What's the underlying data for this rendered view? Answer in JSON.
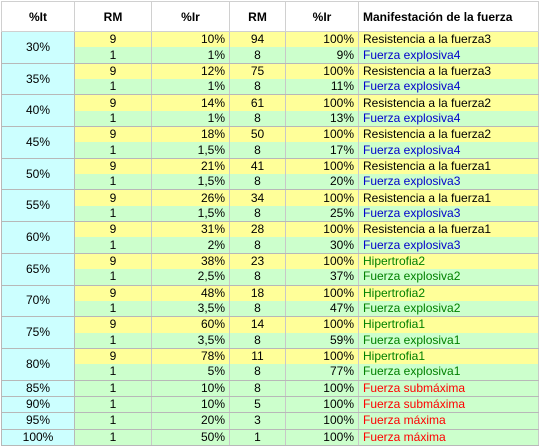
{
  "headers": [
    "%It",
    "RM",
    "%Ir",
    "RM",
    "%Ir",
    "Manifestación de la fuerza"
  ],
  "colors": {
    "black": "#000000",
    "blue": "#0000cc",
    "green": "#008000",
    "red": "#ff0000"
  },
  "groups": [
    {
      "it": "30%",
      "rows": [
        {
          "rm1": "9",
          "ir1": "10%",
          "rm2": "94",
          "ir2": "100%",
          "manif": "Resistencia a la fuerza3",
          "color": "black",
          "bg": "yellow"
        },
        {
          "rm1": "1",
          "ir1": "1%",
          "rm2": "8",
          "ir2": "9%",
          "manif": "Fuerza explosiva4",
          "color": "blue",
          "bg": "green"
        }
      ]
    },
    {
      "it": "35%",
      "rows": [
        {
          "rm1": "9",
          "ir1": "12%",
          "rm2": "75",
          "ir2": "100%",
          "manif": "Resistencia a la fuerza3",
          "color": "black",
          "bg": "yellow"
        },
        {
          "rm1": "1",
          "ir1": "1%",
          "rm2": "8",
          "ir2": "11%",
          "manif": "Fuerza explosiva4",
          "color": "blue",
          "bg": "green"
        }
      ]
    },
    {
      "it": "40%",
      "rows": [
        {
          "rm1": "9",
          "ir1": "14%",
          "rm2": "61",
          "ir2": "100%",
          "manif": "Resistencia a la fuerza2",
          "color": "black",
          "bg": "yellow"
        },
        {
          "rm1": "1",
          "ir1": "1%",
          "rm2": "8",
          "ir2": "13%",
          "manif": "Fuerza explosiva4",
          "color": "blue",
          "bg": "green"
        }
      ]
    },
    {
      "it": "45%",
      "rows": [
        {
          "rm1": "9",
          "ir1": "18%",
          "rm2": "50",
          "ir2": "100%",
          "manif": "Resistencia a la fuerza2",
          "color": "black",
          "bg": "yellow"
        },
        {
          "rm1": "1",
          "ir1": "1,5%",
          "rm2": "8",
          "ir2": "17%",
          "manif": "Fuerza explosiva4",
          "color": "blue",
          "bg": "green"
        }
      ]
    },
    {
      "it": "50%",
      "rows": [
        {
          "rm1": "9",
          "ir1": "21%",
          "rm2": "41",
          "ir2": "100%",
          "manif": "Resistencia a la fuerza1",
          "color": "black",
          "bg": "yellow"
        },
        {
          "rm1": "1",
          "ir1": "1,5%",
          "rm2": "8",
          "ir2": "20%",
          "manif": "Fuerza explosiva3",
          "color": "blue",
          "bg": "green"
        }
      ]
    },
    {
      "it": "55%",
      "rows": [
        {
          "rm1": "9",
          "ir1": "26%",
          "rm2": "34",
          "ir2": "100%",
          "manif": "Resistencia a la fuerza1",
          "color": "black",
          "bg": "yellow"
        },
        {
          "rm1": "1",
          "ir1": "1,5%",
          "rm2": "8",
          "ir2": "25%",
          "manif": "Fuerza explosiva3",
          "color": "blue",
          "bg": "green"
        }
      ]
    },
    {
      "it": "60%",
      "rows": [
        {
          "rm1": "9",
          "ir1": "31%",
          "rm2": "28",
          "ir2": "100%",
          "manif": "Resistencia a la fuerza1",
          "color": "black",
          "bg": "yellow"
        },
        {
          "rm1": "1",
          "ir1": "2%",
          "rm2": "8",
          "ir2": "30%",
          "manif": "Fuerza explosiva3",
          "color": "blue",
          "bg": "green"
        }
      ]
    },
    {
      "it": "65%",
      "rows": [
        {
          "rm1": "9",
          "ir1": "38%",
          "rm2": "23",
          "ir2": "100%",
          "manif": "Hipertrofia2",
          "color": "green",
          "bg": "yellow"
        },
        {
          "rm1": "1",
          "ir1": "2,5%",
          "rm2": "8",
          "ir2": "37%",
          "manif": "Fuerza explosiva2",
          "color": "green",
          "bg": "green"
        }
      ]
    },
    {
      "it": "70%",
      "rows": [
        {
          "rm1": "9",
          "ir1": "48%",
          "rm2": "18",
          "ir2": "100%",
          "manif": "Hipertrofia2",
          "color": "green",
          "bg": "yellow"
        },
        {
          "rm1": "1",
          "ir1": "3,5%",
          "rm2": "8",
          "ir2": "47%",
          "manif": "Fuerza explosiva2",
          "color": "green",
          "bg": "green"
        }
      ]
    },
    {
      "it": "75%",
      "rows": [
        {
          "rm1": "9",
          "ir1": "60%",
          "rm2": "14",
          "ir2": "100%",
          "manif": "Hipertrofia1",
          "color": "green",
          "bg": "yellow"
        },
        {
          "rm1": "1",
          "ir1": "3,5%",
          "rm2": "8",
          "ir2": "59%",
          "manif": "Fuerza explosiva1",
          "color": "green",
          "bg": "green"
        }
      ]
    },
    {
      "it": "80%",
      "rows": [
        {
          "rm1": "9",
          "ir1": "78%",
          "rm2": "11",
          "ir2": "100%",
          "manif": "Hipertrofia1",
          "color": "green",
          "bg": "yellow"
        },
        {
          "rm1": "1",
          "ir1": "5%",
          "rm2": "8",
          "ir2": "77%",
          "manif": "Fuerza explosiva1",
          "color": "green",
          "bg": "green"
        }
      ]
    },
    {
      "it": "85%",
      "rows": [
        {
          "rm1": "1",
          "ir1": "10%",
          "rm2": "8",
          "ir2": "100%",
          "manif": "Fuerza submáxima",
          "color": "red",
          "bg": "green"
        }
      ]
    },
    {
      "it": "90%",
      "rows": [
        {
          "rm1": "1",
          "ir1": "10%",
          "rm2": "5",
          "ir2": "100%",
          "manif": "Fuerza submáxima",
          "color": "red",
          "bg": "green"
        }
      ]
    },
    {
      "it": "95%",
      "rows": [
        {
          "rm1": "1",
          "ir1": "20%",
          "rm2": "3",
          "ir2": "100%",
          "manif": "Fuerza máxima",
          "color": "red",
          "bg": "green"
        }
      ]
    },
    {
      "it": "100%",
      "rows": [
        {
          "rm1": "1",
          "ir1": "50%",
          "rm2": "1",
          "ir2": "100%",
          "manif": "Fuerza máxima",
          "color": "red",
          "bg": "green"
        }
      ]
    }
  ]
}
